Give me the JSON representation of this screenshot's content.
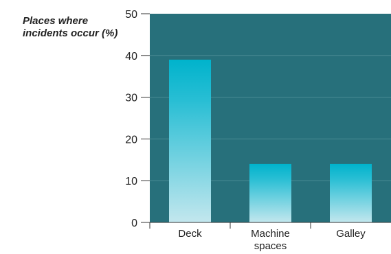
{
  "chart_data": {
    "type": "bar",
    "title": "Places where incidents occur (%)",
    "categories": [
      "Deck",
      "Machine spaces",
      "Galley"
    ],
    "category_lines": [
      [
        "Deck"
      ],
      [
        "Machine",
        "spaces"
      ],
      [
        "Galley"
      ]
    ],
    "values": [
      39,
      14,
      14
    ],
    "ylim": [
      0,
      50
    ],
    "yticks": [
      "0",
      "10",
      "20",
      "30",
      "40",
      "50"
    ],
    "grid": true,
    "colors": {
      "plot_background": "#27707b",
      "bar_top": "#00b3cc",
      "bar_mid": "#28bed4",
      "bar_bottom": "#c3e7ee",
      "gridline": "#4a8b94",
      "axis": "#333333"
    }
  }
}
